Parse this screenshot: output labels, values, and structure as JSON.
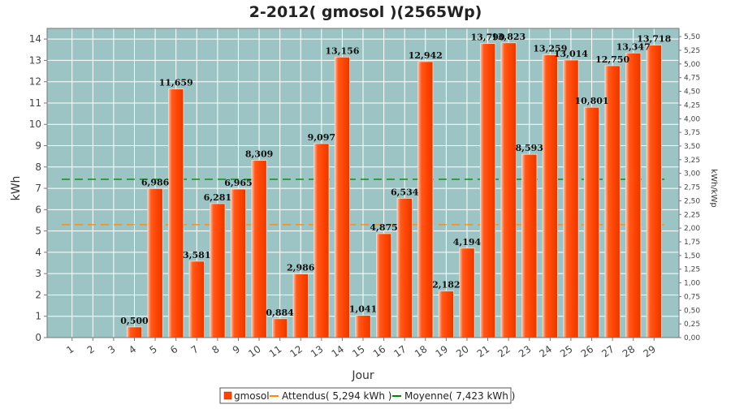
{
  "chart_data": {
    "type": "bar",
    "title": "2-2012( gmosol )(2565Wp)",
    "xlabel": "Jour",
    "ylabel": "kWh",
    "y2label": "kWh/kWp",
    "ylim": [
      0,
      14.5
    ],
    "y2lim": [
      0,
      5.65
    ],
    "yticks": [
      "0",
      "1",
      "2",
      "3",
      "4",
      "5",
      "6",
      "7",
      "8",
      "9",
      "10",
      "11",
      "12",
      "13",
      "14"
    ],
    "y2ticks": [
      "0,00",
      "0,25",
      "0,50",
      "0,75",
      "1,00",
      "1,25",
      "1,50",
      "1,75",
      "2,00",
      "2,25",
      "2,50",
      "2,75",
      "3,00",
      "3,25",
      "3,50",
      "3,75",
      "4,00",
      "4,25",
      "4,50",
      "4,75",
      "5,00",
      "5,25",
      "5,50"
    ],
    "categories": [
      "1",
      "2",
      "3",
      "4",
      "5",
      "6",
      "7",
      "8",
      "9",
      "10",
      "11",
      "12",
      "13",
      "14",
      "15",
      "16",
      "17",
      "18",
      "19",
      "20",
      "21",
      "22",
      "23",
      "24",
      "25",
      "26",
      "27",
      "28",
      "29"
    ],
    "series": [
      {
        "name": "gmosol",
        "color": "#ff4400",
        "values": [
          0,
          0,
          0,
          0.5,
          6.986,
          11.659,
          3.581,
          6.281,
          6.965,
          8.309,
          0.884,
          2.986,
          9.097,
          13.156,
          1.041,
          4.875,
          6.534,
          12.942,
          2.182,
          4.194,
          13.79,
          13.823,
          8.593,
          13.259,
          13.014,
          10.801,
          12.75,
          13.347,
          13.718
        ],
        "labels": [
          "",
          "",
          "",
          "0,500",
          "6,986",
          "11,659",
          "3,581",
          "6,281",
          "6,965",
          "8,309",
          "0,884",
          "2,986",
          "9,097",
          "13,156",
          "1,041",
          "4,875",
          "6,534",
          "12,942",
          "2,182",
          "4,194",
          "13,790",
          "13,823",
          "8,593",
          "13,259",
          "13,014",
          "10,801",
          "12,750",
          "13,347",
          "13,718"
        ]
      }
    ],
    "reference_lines": [
      {
        "name": "Attendus",
        "legend": "Attendus( 5,294 kWh )",
        "value": 5.294,
        "color": "#ff8800"
      },
      {
        "name": "Moyenne",
        "legend": "Moyenne( 7,423 kWh )",
        "value": 7.423,
        "color": "#008800"
      }
    ],
    "plot_background": "#9dc4c4",
    "grid": true,
    "legend_position": "bottom"
  }
}
